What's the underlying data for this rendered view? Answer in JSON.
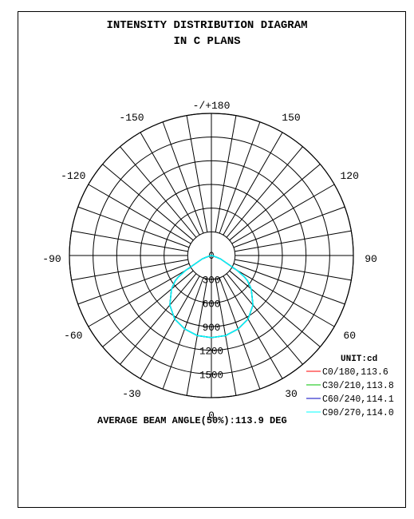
{
  "chart_data": {
    "type": "polar",
    "title": [
      "INTENSITY DISTRIBUTION DIAGRAM",
      "IN C PLANS"
    ],
    "angle_labels": [
      {
        "angle": 180,
        "text": "-/+180"
      },
      {
        "angle": -150,
        "text": "-150"
      },
      {
        "angle": 150,
        "text": "150"
      },
      {
        "angle": -120,
        "text": "-120"
      },
      {
        "angle": 120,
        "text": "120"
      },
      {
        "angle": -90,
        "text": "-90"
      },
      {
        "angle": 90,
        "text": "90"
      },
      {
        "angle": -60,
        "text": "-60"
      },
      {
        "angle": 60,
        "text": "60"
      },
      {
        "angle": -30,
        "text": "-30"
      },
      {
        "angle": 30,
        "text": "30"
      },
      {
        "angle": 0,
        "text": "0"
      }
    ],
    "radial_ticks": [
      "0",
      "300",
      "600",
      "900",
      "1200",
      "1500"
    ],
    "radial_values": [
      0,
      300,
      600,
      900,
      1200,
      1500
    ],
    "rmax": 1800,
    "unit_label": "UNIT:cd",
    "series": [
      {
        "name": "C0/180,113.6",
        "color": "#ff0000"
      },
      {
        "name": "C30/210,113.8",
        "color": "#00c000"
      },
      {
        "name": "C60/240,114.1",
        "color": "#0000c0"
      },
      {
        "name": "C90/270,114.0",
        "color": "#00ffff"
      }
    ],
    "curve": {
      "angles_deg": [
        0,
        10,
        20,
        30,
        40,
        50,
        55,
        57,
        60,
        70,
        80,
        90
      ],
      "intensity_cd": [
        1040,
        1030,
        990,
        930,
        820,
        660,
        560,
        500,
        380,
        120,
        20,
        0
      ]
    },
    "footer": "AVERAGE BEAM ANGLE(50%):113.9 DEG"
  }
}
